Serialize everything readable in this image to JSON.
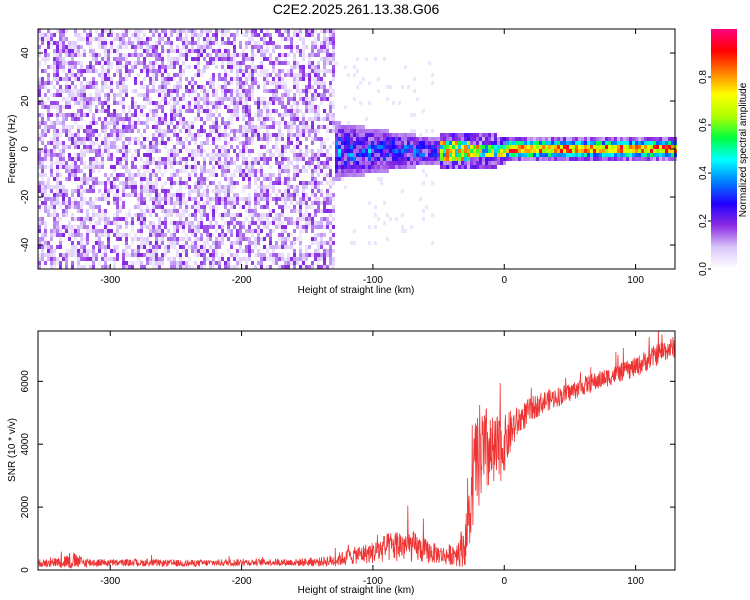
{
  "title": "C2E2.2025.261.13.38.G06",
  "chart_data": [
    {
      "type": "heatmap",
      "xlabel": "Height of straight line (km)",
      "ylabel": "Frequency (Hz)",
      "xlim": [
        -355,
        130
      ],
      "ylim": [
        -50,
        50
      ],
      "xticks": [
        -300,
        -200,
        -100,
        0,
        100
      ],
      "yticks": [
        -40,
        -20,
        0,
        20,
        40
      ],
      "colorbar": {
        "label": "Normalized spectral amplitude",
        "range": [
          0.0,
          1.0
        ],
        "ticks": [
          0.0,
          0.2,
          0.4,
          0.6,
          0.8
        ],
        "tick_labels": [
          "0.0",
          "0.2",
          "0.4",
          "0.6",
          "0.8"
        ],
        "colormap": [
          "#ffffff",
          "#d9c6f9",
          "#8a2be2",
          "#2200ff",
          "#0080ff",
          "#00ffff",
          "#00ff40",
          "#b0ff00",
          "#ffff00",
          "#ff8000",
          "#ff0000",
          "#ff0080"
        ]
      },
      "regions": [
        {
          "x": [
            -355,
            -130
          ],
          "freq": [
            -50,
            50
          ],
          "amplitude": [
            0.05,
            0.2
          ],
          "description_id": "broad-noise"
        },
        {
          "x": [
            -130,
            -50
          ],
          "freq": [
            -12,
            12
          ],
          "amplitude": [
            0.1,
            0.5
          ]
        },
        {
          "x": [
            -50,
            0
          ],
          "freq": [
            -4,
            4
          ],
          "amplitude": [
            0.4,
            0.9
          ]
        },
        {
          "x": [
            0,
            130
          ],
          "freq": [
            -2,
            2
          ],
          "amplitude": [
            0.5,
            0.95
          ]
        }
      ]
    },
    {
      "type": "line",
      "xlabel": "Height of straight line (km)",
      "ylabel": "SNR (10 * v/v)",
      "xlim": [
        -355,
        130
      ],
      "ylim": [
        0,
        7600
      ],
      "xticks": [
        -300,
        -200,
        -100,
        0,
        100
      ],
      "yticks": [
        0,
        2000,
        4000,
        6000
      ],
      "color": "#ee3333",
      "series": [
        {
          "x": [
            -355,
            -340,
            -330,
            -320,
            -300,
            -280,
            -260,
            -240,
            -220,
            -200,
            -180,
            -160,
            -140,
            -130,
            -120,
            -110,
            -100,
            -90,
            -80,
            -70,
            -60,
            -50,
            -45,
            -40,
            -35,
            -30,
            -25,
            -22,
            -20,
            -18,
            -15,
            -12,
            -10,
            -5,
            0,
            5,
            10,
            20,
            30,
            40,
            50,
            60,
            70,
            80,
            90,
            100,
            110,
            120,
            130
          ],
          "y": [
            220,
            250,
            300,
            240,
            230,
            230,
            220,
            210,
            230,
            240,
            250,
            240,
            260,
            300,
            400,
            500,
            550,
            700,
            800,
            750,
            600,
            500,
            450,
            500,
            600,
            800,
            2000,
            3500,
            3300,
            3800,
            3500,
            3900,
            3600,
            3700,
            4000,
            4400,
            4700,
            5100,
            5350,
            5500,
            5650,
            5850,
            6000,
            6150,
            6300,
            6450,
            6700,
            6950,
            7100
          ],
          "noise": [
            120,
            150,
            300,
            150,
            110,
            110,
            110,
            110,
            110,
            110,
            110,
            120,
            150,
            200,
            250,
            300,
            350,
            450,
            550,
            500,
            400,
            300,
            300,
            350,
            500,
            700,
            1200,
            1500,
            1500,
            1800,
            1600,
            1500,
            1300,
            1200,
            900,
            700,
            500,
            400,
            350,
            320,
            300,
            300,
            300,
            300,
            300,
            320,
            350,
            350,
            350
          ]
        }
      ]
    }
  ]
}
